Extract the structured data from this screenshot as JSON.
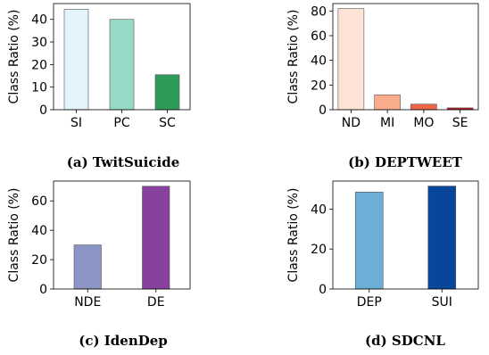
{
  "chart_data": [
    {
      "type": "bar",
      "caption": "(a) TwitSuicide",
      "ylabel": "Class Ratio (%)",
      "categories": [
        "SI",
        "PC",
        "SC"
      ],
      "values": [
        44.5,
        40,
        15.5
      ],
      "colors": [
        "#e3f2fb",
        "#98d8c7",
        "#2e9c58"
      ],
      "ylim": [
        0,
        47
      ],
      "yticks": [
        0,
        10,
        20,
        30,
        40
      ],
      "grid": false
    },
    {
      "type": "bar",
      "caption": "(b) DEPTWEET",
      "ylabel": "Class Ratio (%)",
      "categories": [
        "ND",
        "MI",
        "MO",
        "SE"
      ],
      "values": [
        82,
        12,
        4.5,
        1.5
      ],
      "colors": [
        "#fde3d6",
        "#f9ad8c",
        "#ef6547",
        "#bd1a1d"
      ],
      "ylim": [
        0,
        86
      ],
      "yticks": [
        0,
        20,
        40,
        60,
        80
      ],
      "grid": false
    },
    {
      "type": "bar",
      "caption": "(c) IdenDep",
      "ylabel": "Class Ratio (%)",
      "categories": [
        "NDE",
        "DE"
      ],
      "values": [
        30,
        70
      ],
      "colors": [
        "#8c96c6",
        "#88419d"
      ],
      "ylim": [
        0,
        73.5
      ],
      "yticks": [
        0,
        20,
        40,
        60
      ],
      "grid": false
    },
    {
      "type": "bar",
      "caption": "(d) SDCNL",
      "ylabel": "Class Ratio (%)",
      "categories": [
        "DEP",
        "SUI"
      ],
      "values": [
        48.5,
        51.5
      ],
      "colors": [
        "#6baed6",
        "#08469b"
      ],
      "ylim": [
        0,
        54
      ],
      "yticks": [
        0,
        20,
        40
      ],
      "grid": false
    }
  ]
}
